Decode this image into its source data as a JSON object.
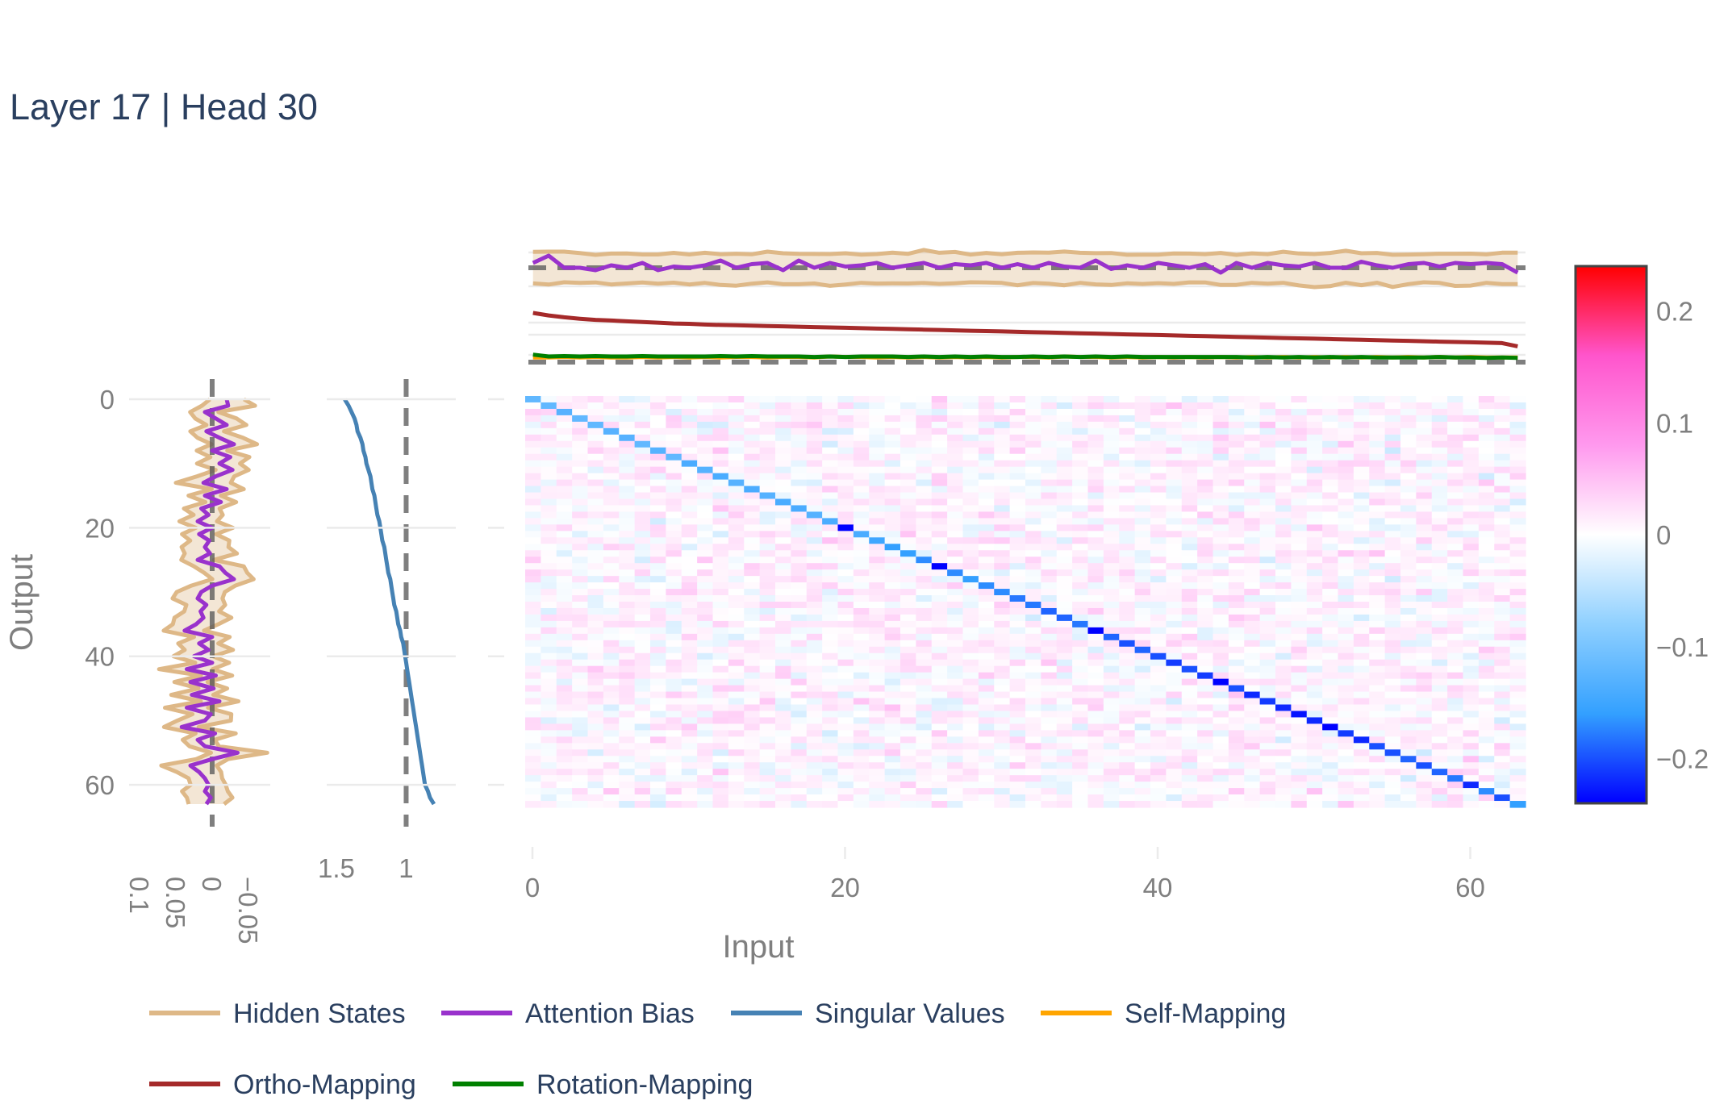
{
  "chart_data": {
    "type": "heatmap",
    "title": "Layer 17 | Head 30",
    "xlabel": "Input",
    "ylabel": "Output",
    "matrix_size": 64,
    "x_ticks": [
      "0",
      "20",
      "40",
      "60"
    ],
    "y_ticks": [
      "0",
      "20",
      "40",
      "60"
    ],
    "left_profile_ticks": [
      "0.1",
      "0.05",
      "0",
      "−0.05"
    ],
    "singular_ticks": [
      "1.5",
      "1"
    ],
    "colorbar": {
      "range": [
        -0.24,
        0.24
      ],
      "ticks": [
        "0.2",
        "0.1",
        "0",
        "−0.1",
        "−0.2"
      ],
      "tick_values": [
        0.2,
        0.1,
        0,
        -0.1,
        -0.2
      ],
      "colors": [
        "#0000ff",
        "#33a0ff",
        "#8fd0ff",
        "#ffffff",
        "#ff99ee",
        "#ff55cc",
        "#ff0000"
      ]
    },
    "diagonal_values": [
      -0.12,
      -0.12,
      -0.13,
      -0.12,
      -0.12,
      -0.13,
      -0.13,
      -0.12,
      -0.13,
      -0.12,
      -0.14,
      -0.13,
      -0.14,
      -0.13,
      -0.14,
      -0.13,
      -0.14,
      -0.14,
      -0.13,
      -0.14,
      -0.24,
      -0.14,
      -0.15,
      -0.16,
      -0.16,
      -0.17,
      -0.24,
      -0.17,
      -0.16,
      -0.17,
      -0.17,
      -0.18,
      -0.18,
      -0.19,
      -0.19,
      -0.18,
      -0.26,
      -0.19,
      -0.2,
      -0.19,
      -0.2,
      -0.21,
      -0.2,
      -0.21,
      -0.24,
      -0.2,
      -0.22,
      -0.21,
      -0.22,
      -0.23,
      -0.22,
      -0.24,
      -0.21,
      -0.22,
      -0.2,
      -0.2,
      -0.19,
      -0.2,
      -0.19,
      -0.18,
      -0.22,
      -0.17,
      -0.2,
      -0.16
    ],
    "series": [
      {
        "name": "Hidden States",
        "color": "#deb887"
      },
      {
        "name": "Attention Bias",
        "color": "#9932cc"
      },
      {
        "name": "Singular Values",
        "color": "#4682b4"
      },
      {
        "name": "Self-Mapping",
        "color": "#ffa500"
      },
      {
        "name": "Ortho-Mapping",
        "color": "#a52a2a"
      },
      {
        "name": "Rotation-Mapping",
        "color": "#008000"
      }
    ],
    "singular_values": [
      1.62,
      1.58,
      1.55,
      1.52,
      1.5,
      1.49,
      1.46,
      1.44,
      1.43,
      1.41,
      1.4,
      1.38,
      1.36,
      1.35,
      1.34,
      1.32,
      1.31,
      1.3,
      1.29,
      1.27,
      1.26,
      1.25,
      1.24,
      1.22,
      1.21,
      1.2,
      1.19,
      1.18,
      1.16,
      1.15,
      1.14,
      1.13,
      1.12,
      1.1,
      1.09,
      1.08,
      1.06,
      1.05,
      1.03,
      1.02,
      1.01,
      1.0,
      0.99,
      0.98,
      0.97,
      0.96,
      0.95,
      0.94,
      0.93,
      0.92,
      0.91,
      0.9,
      0.89,
      0.88,
      0.87,
      0.86,
      0.85,
      0.84,
      0.83,
      0.82,
      0.81,
      0.78,
      0.76,
      0.72
    ],
    "singular_xlim": [
      1.8,
      0.5
    ],
    "profile_xlim": [
      0.12,
      -0.08
    ],
    "attention_bias_left": [
      -0.02,
      -0.022,
      0.01,
      -0.005,
      -0.02,
      0.008,
      -0.01,
      -0.03,
      0.0,
      -0.025,
      -0.01,
      -0.028,
      -0.005,
      0.012,
      -0.02,
      0.01,
      -0.012,
      0.015,
      0.005,
      0.02,
      0.0,
      0.018,
      0.004,
      0.01,
      0.003,
      0.02,
      -0.01,
      -0.018,
      -0.03,
      0.0,
      0.015,
      0.02,
      0.008,
      0.016,
      0.012,
      0.022,
      0.038,
      0.0,
      0.018,
      0.005,
      0.025,
      0.0,
      0.035,
      -0.005,
      0.03,
      -0.002,
      0.028,
      -0.01,
      0.035,
      0.002,
      0.01,
      0.042,
      -0.004,
      0.02,
      0.01,
      -0.035,
      0.0,
      0.03,
      0.018,
      0.01,
      0.005,
      0.01,
      0.002,
      0.008
    ],
    "attention_bias_top": [
      0.02,
      0.05,
      0.0,
      0.0,
      -0.01,
      0.01,
      0.0,
      0.02,
      -0.01,
      0.005,
      0.0,
      0.01,
      0.03,
      0.0,
      0.015,
      0.02,
      -0.01,
      0.03,
      0.0,
      0.02,
      0.005,
      0.01,
      0.02,
      0.0,
      0.01,
      0.02,
      0.0,
      0.015,
      0.01,
      0.02,
      0.0,
      0.015,
      0.0,
      0.02,
      0.005,
      0.0,
      0.03,
      -0.005,
      0.01,
      0.0,
      0.02,
      0.01,
      0.0,
      0.015,
      -0.02,
      0.02,
      0.0,
      0.02,
      0.01,
      0.005,
      0.02,
      0.0,
      0.0,
      0.025,
      0.01,
      0.0,
      0.015,
      0.02,
      0.005,
      0.02,
      0.015,
      0.02,
      0.015,
      -0.02
    ],
    "ortho_mapping": [
      1.0,
      0.93,
      0.88,
      0.84,
      0.81,
      0.79,
      0.77,
      0.75,
      0.73,
      0.71,
      0.7,
      0.68,
      0.67,
      0.66,
      0.65,
      0.64,
      0.63,
      0.62,
      0.61,
      0.6,
      0.59,
      0.58,
      0.57,
      0.56,
      0.55,
      0.54,
      0.53,
      0.52,
      0.51,
      0.5,
      0.49,
      0.48,
      0.47,
      0.46,
      0.45,
      0.44,
      0.43,
      0.42,
      0.41,
      0.4,
      0.39,
      0.38,
      0.37,
      0.36,
      0.35,
      0.34,
      0.33,
      0.32,
      0.31,
      0.3,
      0.29,
      0.28,
      0.27,
      0.26,
      0.25,
      0.24,
      0.23,
      0.22,
      0.21,
      0.2,
      0.19,
      0.18,
      0.17,
      0.08
    ],
    "rotation_mapping": [
      0.16,
      0.12,
      0.13,
      0.12,
      0.13,
      0.12,
      0.12,
      0.13,
      0.12,
      0.12,
      0.12,
      0.12,
      0.13,
      0.12,
      0.13,
      0.12,
      0.12,
      0.12,
      0.11,
      0.12,
      0.11,
      0.12,
      0.12,
      0.12,
      0.11,
      0.12,
      0.11,
      0.12,
      0.11,
      0.12,
      0.11,
      0.11,
      0.12,
      0.11,
      0.12,
      0.11,
      0.12,
      0.11,
      0.12,
      0.11,
      0.11,
      0.11,
      0.11,
      0.11,
      0.11,
      0.11,
      0.1,
      0.11,
      0.1,
      0.11,
      0.1,
      0.11,
      0.1,
      0.11,
      0.1,
      0.1,
      0.1,
      0.1,
      0.11,
      0.1,
      0.1,
      0.09,
      0.1,
      0.09
    ],
    "self_mapping": [
      0.1,
      0.1,
      0.11,
      0.1,
      0.11,
      0.1,
      0.1,
      0.11,
      0.1,
      0.11,
      0.1,
      0.11,
      0.1,
      0.11,
      0.11,
      0.1,
      0.11,
      0.11,
      0.1,
      0.12,
      0.11,
      0.11,
      0.1,
      0.11,
      0.1,
      0.11,
      0.1,
      0.11,
      0.1,
      0.11,
      0.1,
      0.11,
      0.11,
      0.1,
      0.12,
      0.11,
      0.11,
      0.1,
      0.11,
      0.1,
      0.11,
      0.1,
      0.11,
      0.1,
      0.11,
      0.1,
      0.11,
      0.1,
      0.11,
      0.1,
      0.11,
      0.1,
      0.11,
      0.1,
      0.11,
      0.1,
      0.11,
      0.1,
      0.11,
      0.1,
      0.11,
      0.1,
      0.1,
      0.1
    ]
  }
}
